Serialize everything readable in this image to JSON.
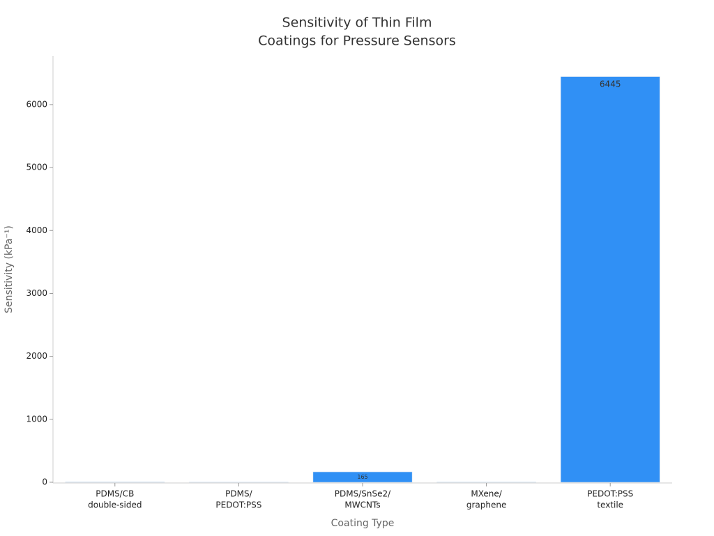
{
  "chart_data": {
    "type": "bar",
    "title": [
      "Sensitivity of Thin Film",
      "Coatings for Pressure Sensors"
    ],
    "x_label": "Coating Type",
    "y_label": "Sensitivity (kPa⁻¹)",
    "categories": [
      [
        "PDMS/CB",
        "double-sided"
      ],
      [
        "PDMS/",
        "PEDOT:PSS"
      ],
      [
        "PDMS/SnSe2/",
        "MWCNTs"
      ],
      [
        "MXene/",
        "graphene"
      ],
      [
        "PEDOT:PSS",
        "textile"
      ]
    ],
    "values": [
      5,
      1,
      165,
      3,
      6445
    ],
    "color": "#3090f5",
    "ylim": [
      0,
      6775
    ],
    "yticks": [
      0,
      1000,
      2000,
      3000,
      4000,
      5000,
      6000
    ],
    "grid": false
  }
}
